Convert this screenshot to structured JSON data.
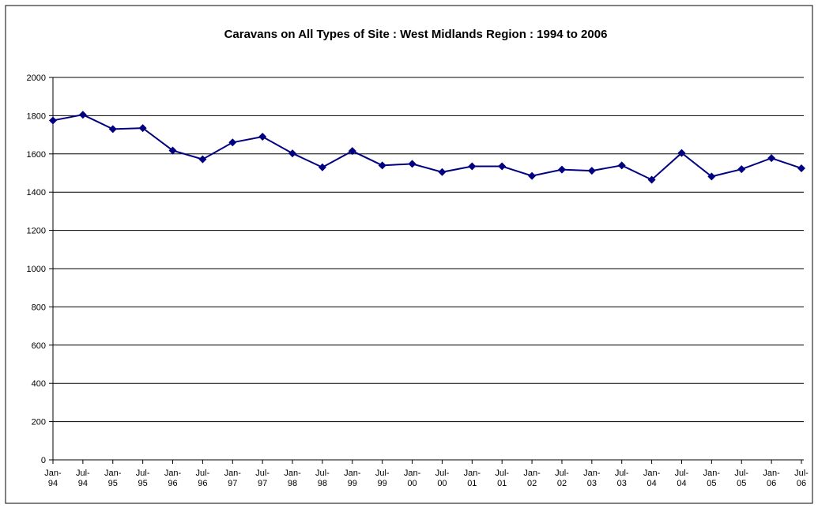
{
  "chart_data": {
    "type": "line",
    "title": "Caravans on All Types of Site : West Midlands Region : 1994 to 2006",
    "categories": [
      "Jan-94",
      "Jul-94",
      "Jan-95",
      "Jul-95",
      "Jan-96",
      "Jul-96",
      "Jan-97",
      "Jul-97",
      "Jan-98",
      "Jul-98",
      "Jan-99",
      "Jul-99",
      "Jan-00",
      "Jul-00",
      "Jan-01",
      "Jul-01",
      "Jan-02",
      "Jul-02",
      "Jan-03",
      "Jul-03",
      "Jan-04",
      "Jul-04",
      "Jan-05",
      "Jul-05",
      "Jan-06",
      "Jul-06"
    ],
    "values": [
      1775,
      1805,
      1730,
      1735,
      1618,
      1572,
      1660,
      1690,
      1603,
      1530,
      1615,
      1540,
      1548,
      1505,
      1535,
      1535,
      1485,
      1518,
      1512,
      1540,
      1465,
      1605,
      1482,
      1520,
      1578,
      1525
    ],
    "color": "#000080",
    "ylim": [
      0,
      2000
    ],
    "yticks": [
      0,
      200,
      400,
      600,
      800,
      1000,
      1200,
      1400,
      1600,
      1800,
      2000
    ],
    "grid": true
  }
}
